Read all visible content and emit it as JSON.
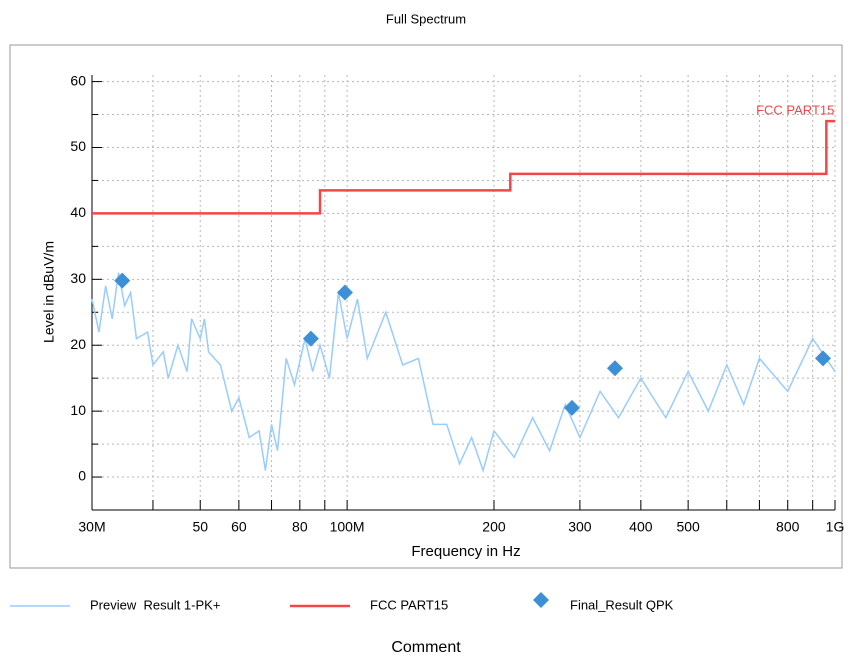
{
  "chart_data": {
    "type": "line",
    "title": "Full Spectrum",
    "xlabel": "Frequency in Hz",
    "ylabel": "Level in dBuV/m",
    "xscale": "log",
    "xlim": [
      30000000.0,
      1000000000.0
    ],
    "xticks": [
      {
        "value": 30000000.0,
        "label": "30M"
      },
      {
        "value": 50000000.0,
        "label": "50"
      },
      {
        "value": 60000000.0,
        "label": "60"
      },
      {
        "value": 80000000.0,
        "label": "80"
      },
      {
        "value": 100000000.0,
        "label": "100M"
      },
      {
        "value": 200000000.0,
        "label": "200"
      },
      {
        "value": 300000000.0,
        "label": "300"
      },
      {
        "value": 400000000.0,
        "label": "400"
      },
      {
        "value": 500000000.0,
        "label": "500"
      },
      {
        "value": 800000000.0,
        "label": "800"
      },
      {
        "value": 1000000000.0,
        "label": "1G"
      }
    ],
    "xminorticks": [
      40000000.0,
      70000000.0,
      90000000.0,
      600000000.0,
      700000000.0,
      900000000.0
    ],
    "ylim": [
      -5,
      61
    ],
    "yticks": [
      0,
      10,
      20,
      30,
      40,
      50,
      60
    ],
    "yminorticks": [
      5,
      15,
      25,
      35,
      45,
      55
    ],
    "grid": true,
    "annotations": [
      {
        "text": "FCC PART15",
        "x": 960000000.0,
        "y": 54
      }
    ],
    "comment": "Comment",
    "series": [
      {
        "name": "Preview  Result 1-PK+",
        "color": "#99ccff",
        "mode": "line",
        "x": [
          30000000.0,
          31000000.0,
          32000000.0,
          33000000.0,
          34000000.0,
          35000000.0,
          36000000.0,
          37000000.0,
          39000000.0,
          40000000.0,
          42000000.0,
          43000000.0,
          45000000.0,
          47000000.0,
          48000000.0,
          50000000.0,
          51000000.0,
          52000000.0,
          55000000.0,
          58000000.0,
          60000000.0,
          63000000.0,
          66000000.0,
          68000000.0,
          70000000.0,
          72000000.0,
          75000000.0,
          78000000.0,
          82000000.0,
          85000000.0,
          88000000.0,
          92000000.0,
          96000000.0,
          100000000.0,
          105000000.0,
          110000000.0,
          120000000.0,
          130000000.0,
          140000000.0,
          150000000.0,
          160000000.0,
          170000000.0,
          180000000.0,
          190000000.0,
          200000000.0,
          220000000.0,
          240000000.0,
          260000000.0,
          280000000.0,
          300000000.0,
          330000000.0,
          360000000.0,
          400000000.0,
          450000000.0,
          500000000.0,
          550000000.0,
          600000000.0,
          650000000.0,
          700000000.0,
          800000000.0,
          900000000.0,
          1000000000.0
        ],
        "values": [
          27,
          22,
          29,
          24,
          31,
          26,
          28,
          21,
          22,
          17,
          19,
          15,
          20,
          16,
          24,
          21,
          24,
          19,
          17,
          10,
          12,
          6,
          7,
          1,
          8,
          4,
          18,
          14,
          21,
          16,
          20,
          15,
          28,
          21,
          27,
          18,
          25,
          17,
          18,
          8,
          8,
          2,
          6,
          1,
          7,
          3,
          9,
          4,
          11,
          6,
          13,
          9,
          15,
          9,
          16,
          10,
          17,
          11,
          18,
          13,
          21,
          16
        ]
      },
      {
        "name": "FCC PART15",
        "color": "#f04848",
        "mode": "line",
        "x": [
          30000000.0,
          88000000.0,
          88000000.0,
          216000000.0,
          216000000.0,
          960000000.0,
          960000000.0,
          1000000000.0
        ],
        "values": [
          40,
          40,
          43.5,
          43.5,
          46,
          46,
          54,
          54
        ]
      },
      {
        "name": "Final_Result QPK",
        "color": "#3d8fd6",
        "mode": "markers",
        "x": [
          34600000.0,
          84300000.0,
          99000000.0,
          289000000.0,
          354000000.0,
          945000000.0
        ],
        "values": [
          29.8,
          21,
          28,
          10.5,
          16.5,
          18
        ]
      }
    ]
  }
}
